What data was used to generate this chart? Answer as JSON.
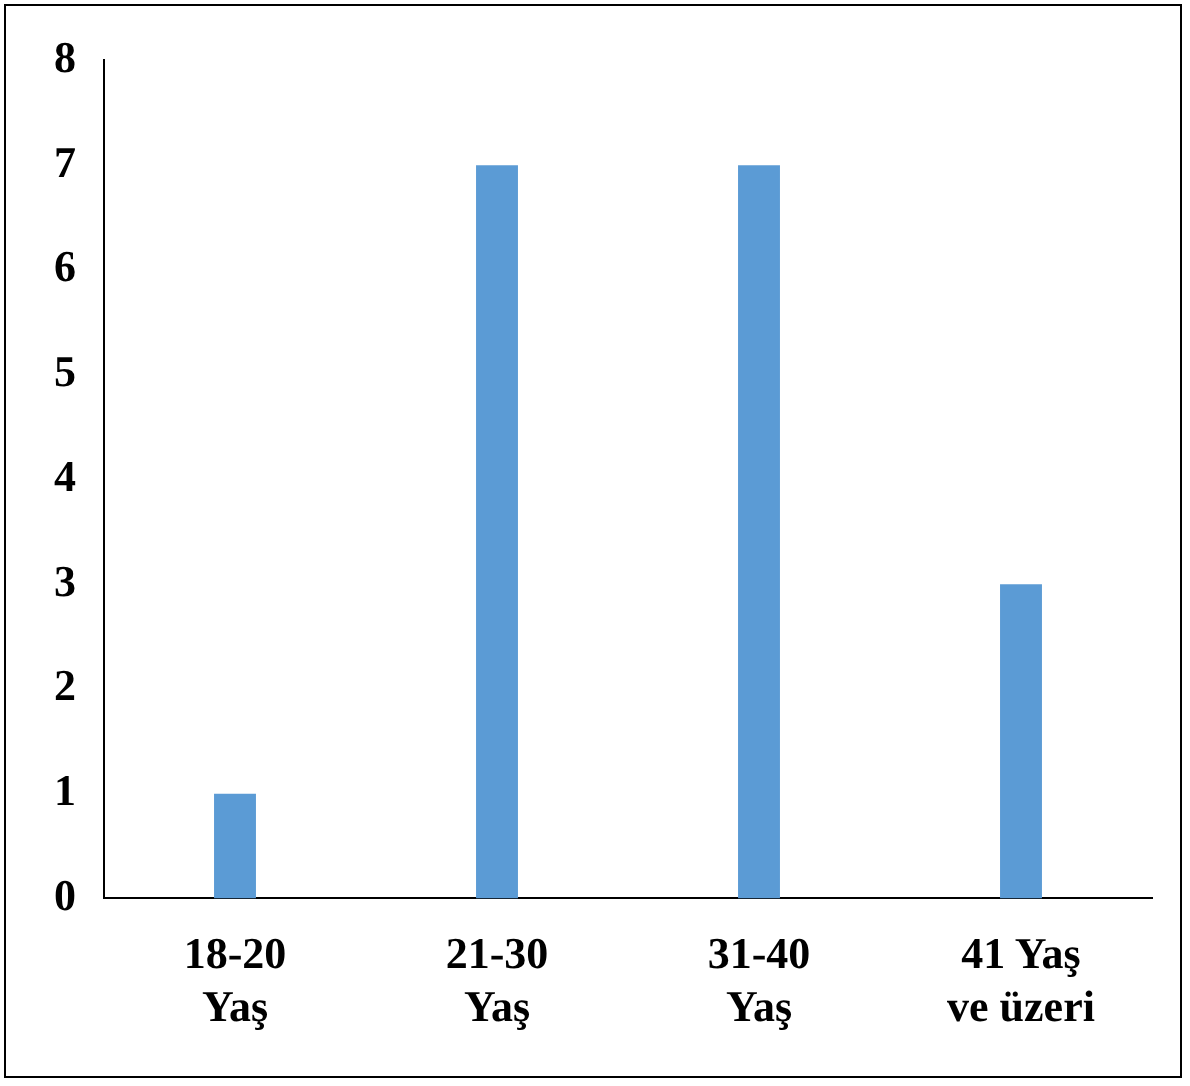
{
  "chart_data": {
    "type": "bar",
    "categories": [
      "18-20 Yaş",
      "21-30 Yaş",
      "31-40 Yaş",
      "41 Yaş ve üzeri"
    ],
    "values": [
      1,
      7,
      7,
      3
    ],
    "color": "#5b9bd5",
    "ylim": [
      0,
      8
    ],
    "yticks": [
      0,
      1,
      2,
      3,
      4,
      5,
      6,
      7,
      8
    ],
    "grid": false,
    "legend": false
  }
}
